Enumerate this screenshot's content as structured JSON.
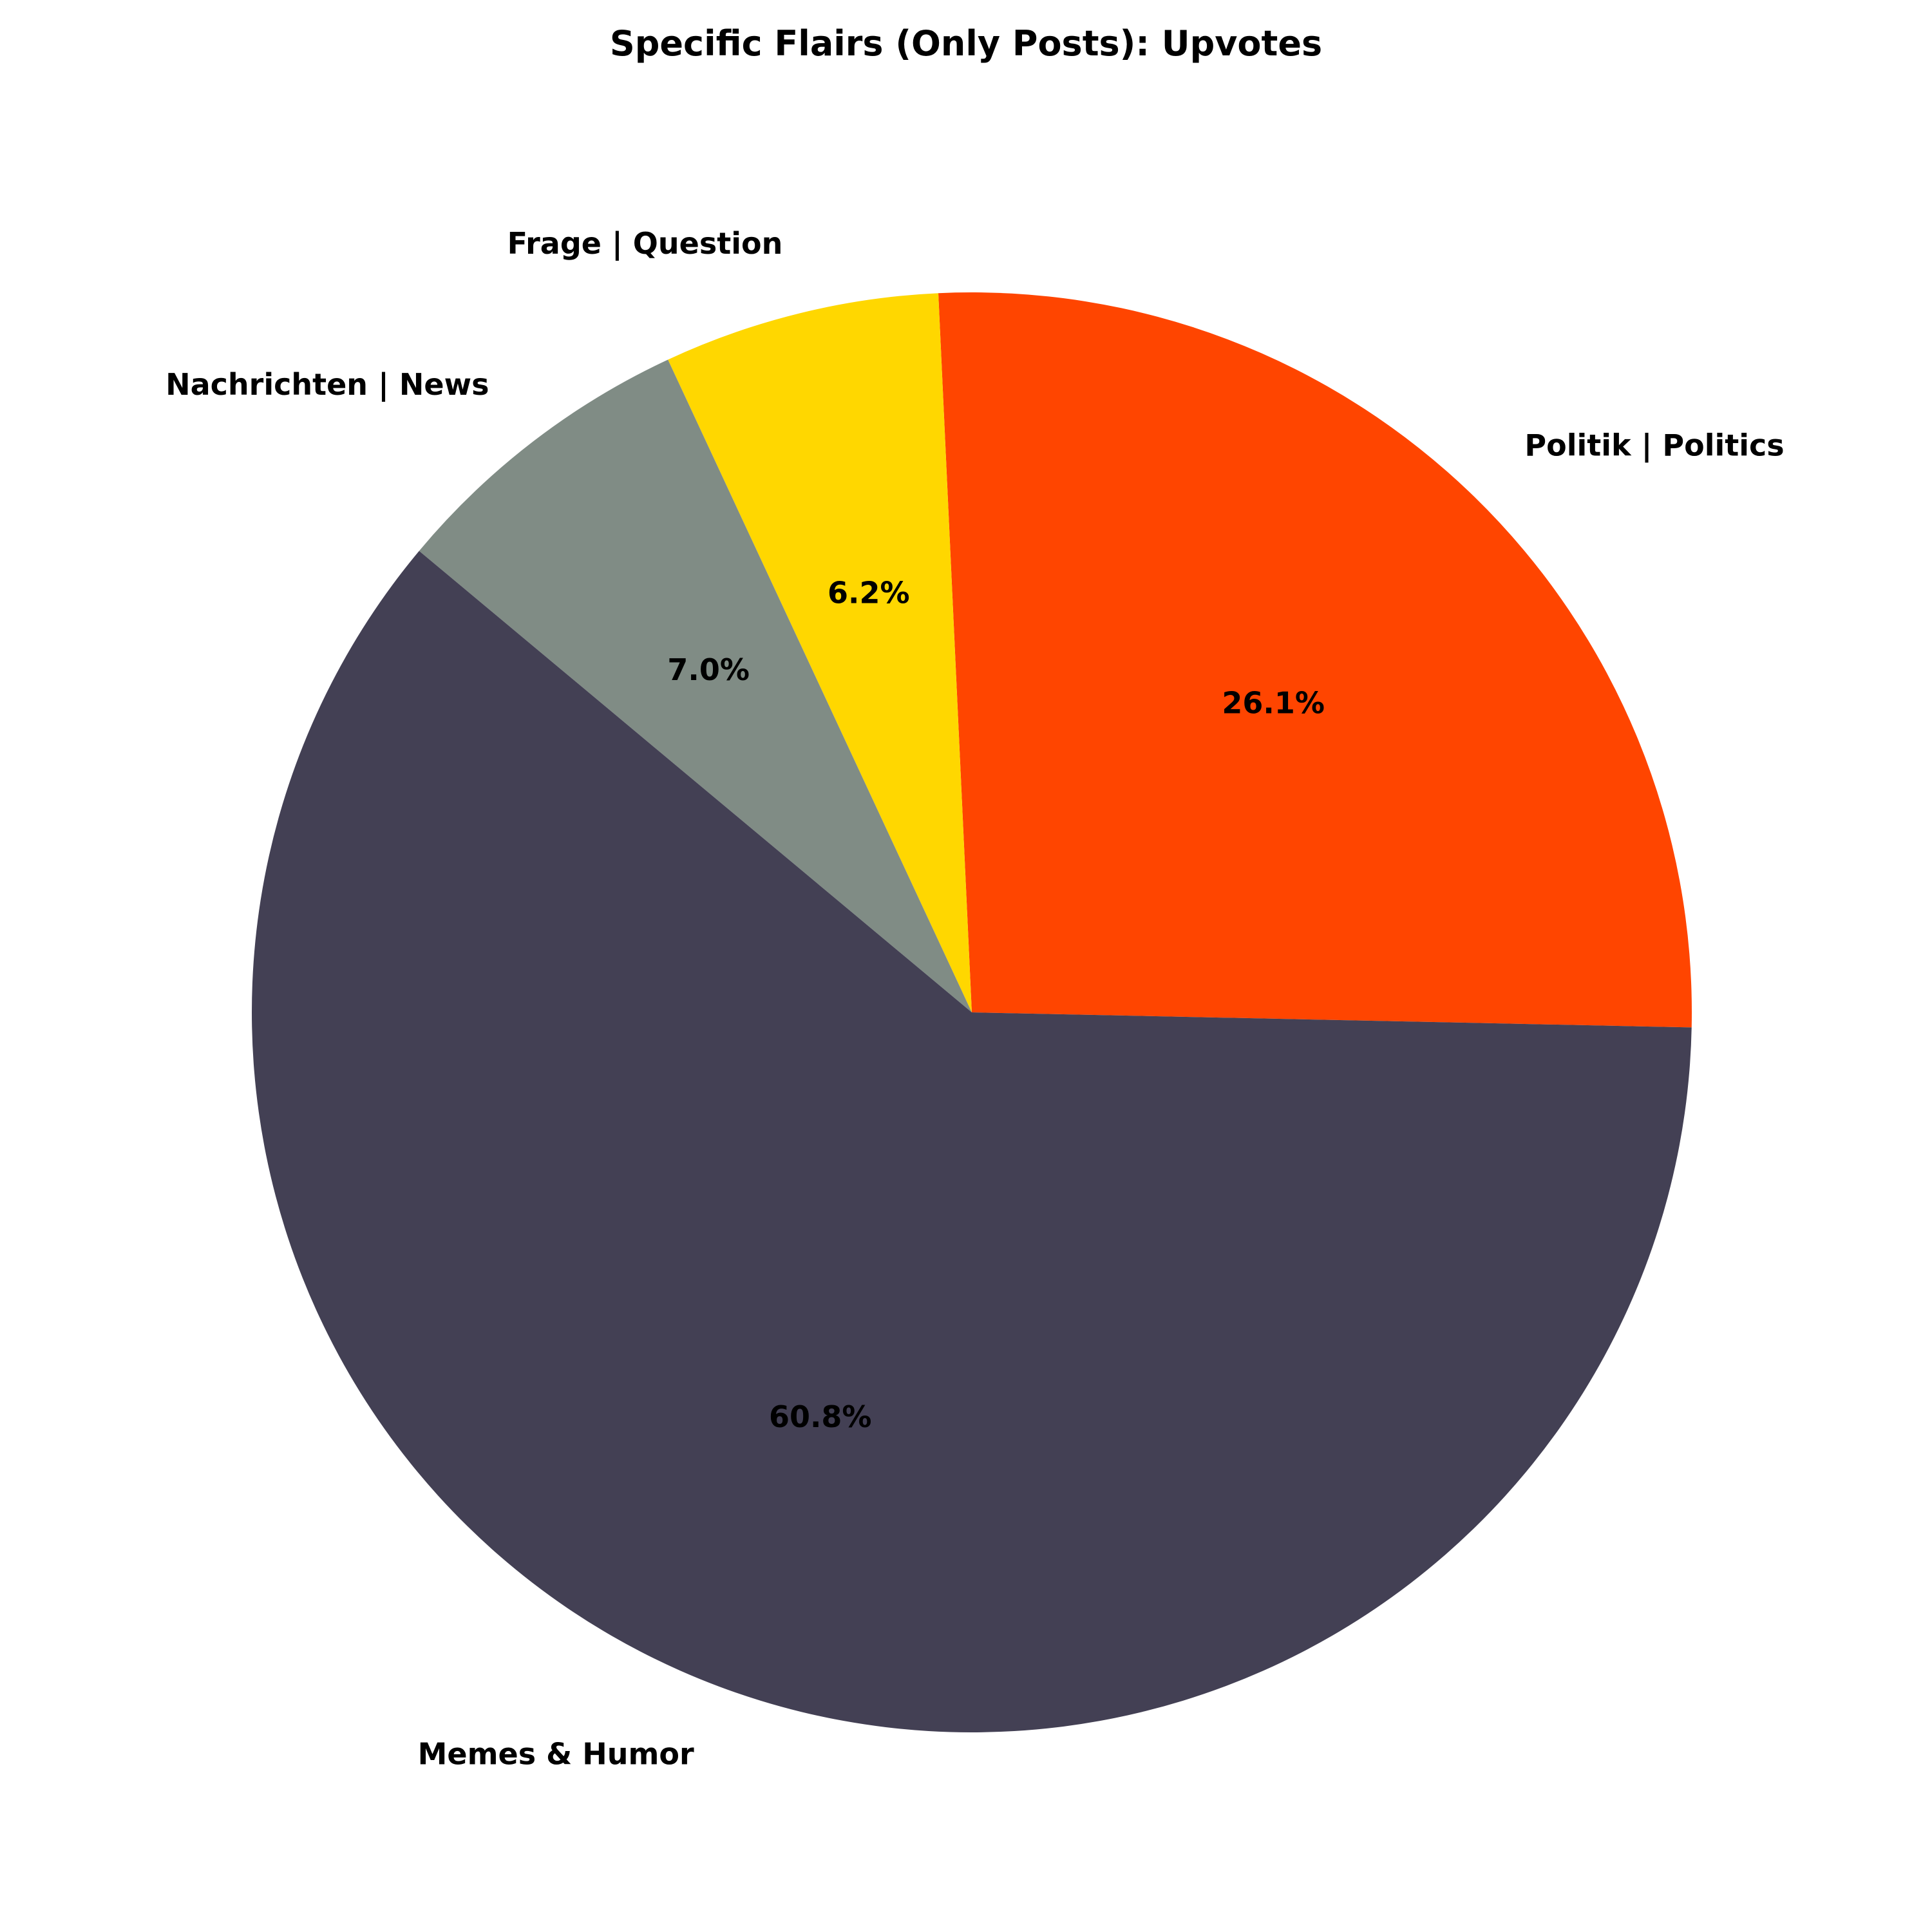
{
  "chart_data": {
    "type": "pie",
    "title": "Specific Flairs (Only Posts): Upvotes",
    "start_angle_deg": -1.2,
    "direction": "counterclockwise",
    "slices": [
      {
        "label": "Politik | Politics",
        "value": 26.1,
        "pct_label": "26.1%",
        "color": "#FF4500"
      },
      {
        "label": "Frage | Question",
        "value": 6.2,
        "pct_label": "6.2%",
        "color": "#FFD700"
      },
      {
        "label": "Nachrichten | News",
        "value": 7.0,
        "pct_label": "7.0%",
        "color": "#808C85"
      },
      {
        "label": "Memes & Humor",
        "value": 60.8,
        "pct_label": "60.8%",
        "color": "#434054"
      }
    ]
  }
}
